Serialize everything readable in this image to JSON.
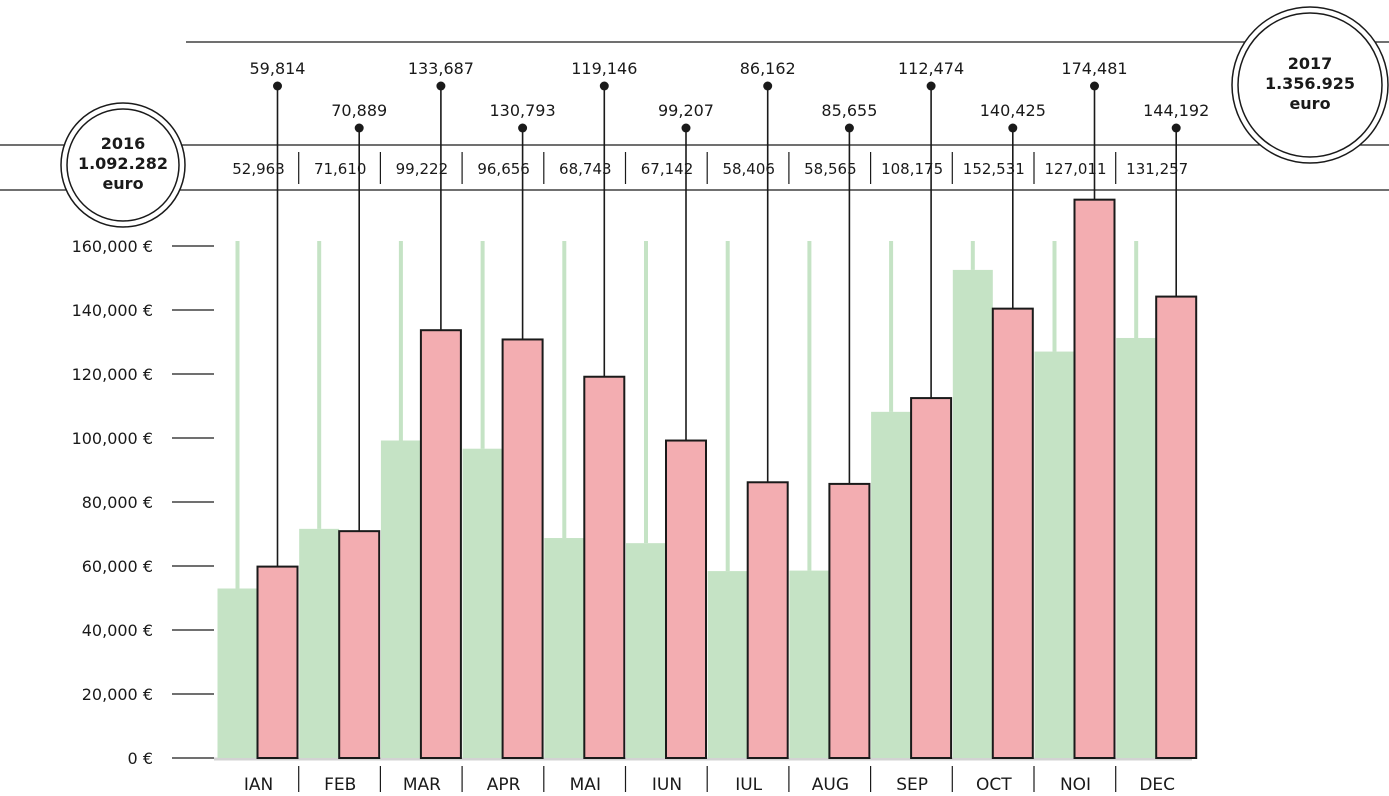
{
  "chart_data": {
    "type": "bar",
    "categories": [
      "IAN",
      "FEB",
      "MAR",
      "APR",
      "MAI",
      "IUN",
      "IUL",
      "AUG",
      "SEP",
      "OCT",
      "NOI",
      "DEC"
    ],
    "series": [
      {
        "name": "2016",
        "values": [
          52963,
          71610,
          99222,
          96656,
          68743,
          67142,
          58406,
          58565,
          108175,
          152531,
          127011,
          131257
        ],
        "labels": [
          "52,963",
          "71,610",
          "99,222",
          "96,656",
          "68,743",
          "67,142",
          "58,406",
          "58,565",
          "108,175",
          "152,531",
          "127,011",
          "131,257"
        ],
        "color": "#c5e3c5"
      },
      {
        "name": "2017",
        "values": [
          59814,
          70889,
          133687,
          130793,
          119146,
          99207,
          86162,
          85655,
          112474,
          140425,
          174481,
          144192
        ],
        "labels": [
          "59,814",
          "70,889",
          "133,687",
          "130,793",
          "119,146",
          "99,207",
          "86,162",
          "85,655",
          "112,474",
          "140,425",
          "174,481",
          "144,192"
        ],
        "color": "#f3adb1"
      }
    ],
    "ylim": [
      0,
      175000
    ],
    "yticks": [
      0,
      20000,
      40000,
      60000,
      80000,
      100000,
      120000,
      140000,
      160000
    ],
    "ytick_labels": [
      "0 €",
      "20,000 €",
      "40,000 €",
      "60,000 €",
      "80,000 €",
      "100,000 €",
      "120,000 €",
      "140,000 €",
      "160,000 €"
    ],
    "totals": {
      "left": {
        "year": "2016",
        "amount": "1.092.282",
        "unit": "euro"
      },
      "right": {
        "year": "2017",
        "amount": "1.356.925",
        "unit": "euro"
      }
    },
    "grid": false
  }
}
